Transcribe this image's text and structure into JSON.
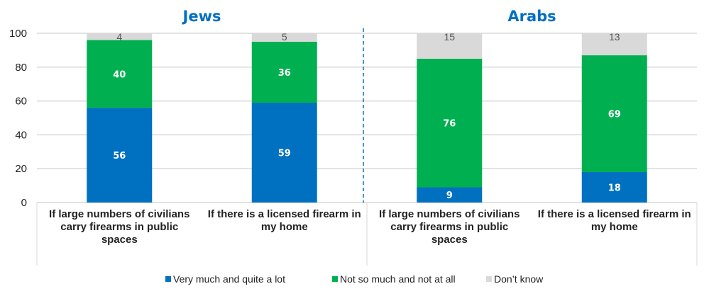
{
  "chart_data": {
    "type": "bar",
    "stacked": true,
    "ylim": [
      0,
      100
    ],
    "yticks": [
      0,
      20,
      40,
      60,
      80,
      100
    ],
    "grid": true,
    "legend_position": "bottom",
    "panels": [
      {
        "title": "Jews",
        "categories": [
          [
            "If large numbers of civilians",
            "carry firearms in public",
            "spaces"
          ],
          [
            "If there is a licensed firearm in",
            "my home"
          ]
        ]
      },
      {
        "title": "Arabs",
        "categories": [
          [
            "If large numbers of civilians",
            "carry firearms in public",
            "spaces"
          ],
          [
            "If there is a licensed firearm in",
            "my home"
          ]
        ]
      }
    ],
    "series": [
      {
        "name": "Very much and quite a lot",
        "color": "#0070C0",
        "values": [
          56,
          59,
          9,
          18
        ]
      },
      {
        "name": "Not so much and not at all",
        "color": "#00B050",
        "values": [
          40,
          36,
          76,
          69
        ]
      },
      {
        "name": "Don’t know",
        "color": "#D9D9D9",
        "values": [
          4,
          5,
          15,
          13
        ]
      }
    ]
  }
}
